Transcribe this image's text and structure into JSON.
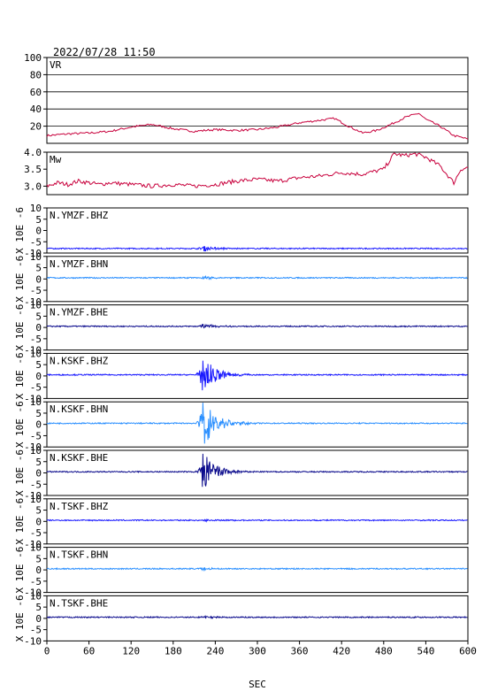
{
  "title": "2022/07/28  11:50",
  "xlabel": "SEC",
  "x_ticks": [
    0,
    60,
    120,
    180,
    240,
    300,
    360,
    420,
    480,
    540,
    600
  ],
  "chart_data": [
    {
      "type": "line",
      "panel": "VR",
      "label": "VR",
      "color": "#c8003c",
      "ylim": [
        0,
        100
      ],
      "y_ticks": [
        20,
        40,
        60,
        80,
        100
      ],
      "y_tick_labels": [
        "20",
        "40",
        "60",
        "80",
        "100"
      ],
      "grid": true,
      "x": [
        0,
        30,
        60,
        90,
        120,
        150,
        180,
        210,
        240,
        270,
        300,
        330,
        360,
        390,
        410,
        430,
        450,
        470,
        490,
        510,
        530,
        540,
        560,
        580,
        600
      ],
      "values": [
        9,
        11,
        12,
        14,
        19,
        22,
        17,
        14,
        16,
        15,
        16,
        19,
        24,
        27,
        29,
        20,
        12,
        15,
        22,
        30,
        35,
        28,
        20,
        9,
        5
      ]
    },
    {
      "type": "line",
      "panel": "Mw",
      "label": "Mw",
      "color": "#c8003c",
      "ylim": [
        2.75,
        4.0
      ],
      "y_ticks": [
        3.0,
        3.5,
        4.0
      ],
      "y_tick_labels": [
        "3.0",
        "3.5",
        "4.0"
      ],
      "grid": false,
      "x": [
        0,
        15,
        30,
        45,
        60,
        75,
        90,
        120,
        150,
        180,
        210,
        240,
        255,
        270,
        300,
        330,
        360,
        390,
        420,
        450,
        480,
        495,
        510,
        525,
        540,
        560,
        580,
        590,
        600
      ],
      "values": [
        3.0,
        3.1,
        3.05,
        3.15,
        3.1,
        3.05,
        3.1,
        3.05,
        3.0,
        3.05,
        3.0,
        3.05,
        3.1,
        3.15,
        3.2,
        3.15,
        3.25,
        3.3,
        3.4,
        3.35,
        3.5,
        3.95,
        3.9,
        3.95,
        3.85,
        3.6,
        3.1,
        3.5,
        3.55
      ]
    }
  ],
  "waveform_axis": {
    "ylabel": "X 10E -6",
    "ylim": [
      -10,
      10
    ],
    "y_ticks": [
      10,
      5,
      0,
      -5,
      -10
    ],
    "y_tick_labels": [
      "10",
      "5",
      "0",
      "-5",
      "-10"
    ]
  },
  "waveforms": [
    {
      "label": "N.YMZF.BHZ",
      "color": "#1a1aff",
      "baseline": -8,
      "event_amp": 1.2
    },
    {
      "label": "N.YMZF.BHN",
      "color": "#2a8fff",
      "baseline": 0.5,
      "event_amp": 0.8
    },
    {
      "label": "N.YMZF.BHE",
      "color": "#0a0a8c",
      "baseline": 0.5,
      "event_amp": 1.0
    },
    {
      "label": "N.KSKF.BHZ",
      "color": "#1a1aff",
      "baseline": 0.5,
      "event_amp": 9
    },
    {
      "label": "N.KSKF.BHN",
      "color": "#2a8fff",
      "baseline": 0.5,
      "event_amp": 12
    },
    {
      "label": "N.KSKF.BHE",
      "color": "#0a0a8c",
      "baseline": 0.5,
      "event_amp": 9
    },
    {
      "label": "N.TSKF.BHZ",
      "color": "#1a1aff",
      "baseline": 0.5,
      "event_amp": 0.6
    },
    {
      "label": "N.TSKF.BHN",
      "color": "#2a8fff",
      "baseline": 0.5,
      "event_amp": 0.6
    },
    {
      "label": "N.TSKF.BHE",
      "color": "#0a0a8c",
      "baseline": 0.5,
      "event_amp": 0.5
    }
  ]
}
